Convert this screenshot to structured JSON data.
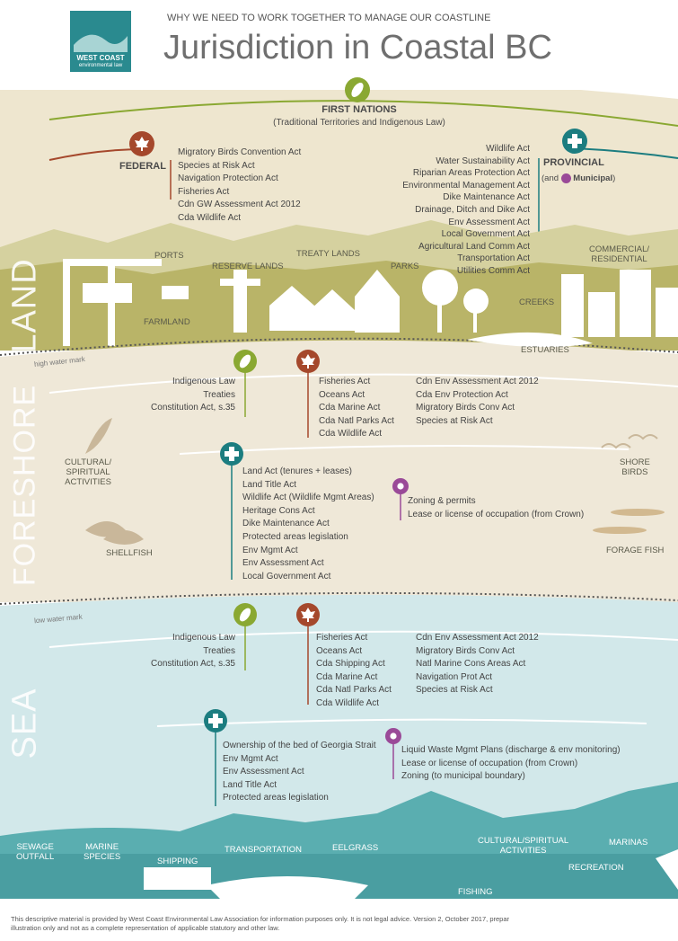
{
  "header": {
    "logo": [
      "WEST COAST",
      "environmental law"
    ],
    "kicker": "WHY WE NEED TO WORK TOGETHER TO MANAGE OUR COASTLINE",
    "title": "Jurisdiction in Coastal BC"
  },
  "top": {
    "first_nations": {
      "title": "FIRST NATIONS",
      "subtitle": "(Traditional Territories and Indigenous Law)"
    },
    "federal": {
      "title": "FEDERAL",
      "acts": [
        "Migratory Birds Convention Act",
        "Species at Risk Act",
        "Navigation Protection Act",
        "Fisheries Act",
        "Cdn GW Assessment Act 2012",
        "Cda Wildlife Act"
      ]
    },
    "provincial": {
      "title": "PROVINCIAL",
      "note_open": "(and",
      "municipal": "Municipal",
      "note_close": ")",
      "acts": [
        "Wildlife Act",
        "Water Sustainability Act",
        "Riparian Areas Protection Act",
        "Environmental Management Act",
        "Dike Maintenance Act",
        "Drainage, Ditch and Dike Act",
        "Env Assessment Act",
        "Local Government Act",
        "Agricultural Land Comm Act",
        "Transportation Act",
        "Utilities Comm Act"
      ]
    }
  },
  "land": {
    "zone": "LAND",
    "places": {
      "ports": "PORTS",
      "reserve": "RESERVE LANDS",
      "treaty": "TREATY LANDS",
      "parks": "PARKS",
      "commercial": [
        "COMMERCIAL/",
        "RESIDENTIAL"
      ],
      "creeks": "CREEKS",
      "farmland": "FARMLAND",
      "estuaries": "ESTUARIES"
    },
    "mark": "high water mark"
  },
  "foreshore": {
    "zone": "FORESHORE",
    "first_nations": [
      "Indigenous Law",
      "Treaties",
      "Constitution Act, s.35"
    ],
    "federal": [
      "Fisheries Act",
      "Oceans Act",
      "Cda Marine Act",
      "Cda Natl Parks Act",
      "Cda Wildlife Act"
    ],
    "federal_2": [
      "Cdn Env Assessment Act 2012",
      "Cda Env Protection Act",
      "Migratory Birds Conv Act",
      "Species at Risk Act"
    ],
    "provincial": [
      "Land Act (tenures + leases)",
      "Land Title Act",
      "Wildlife Act (Wildlife Mgmt Areas)",
      "Heritage Cons Act",
      "Dike Maintenance Act",
      "Protected areas legislation",
      "Env Mgmt Act",
      "Env Assessment Act",
      "Local Government Act"
    ],
    "municipal": [
      "Zoning & permits",
      "Lease or license of occupation (from Crown)"
    ],
    "labels": {
      "cultural": [
        "CULTURAL/",
        "SPIRITUAL",
        "ACTIVITIES"
      ],
      "shellfish": "SHELLFISH",
      "birds": [
        "SHORE",
        "BIRDS"
      ],
      "fish": "FORAGE FISH"
    },
    "mark": "low water mark"
  },
  "sea": {
    "zone": "SEA",
    "first_nations": [
      "Indigenous Law",
      "Treaties",
      "Constitution Act, s.35"
    ],
    "federal": [
      "Fisheries Act",
      "Oceans Act",
      "Cda Shipping Act",
      "Cda Marine Act",
      "Cda Natl Parks Act",
      "Cda Wildlife Act"
    ],
    "federal_2": [
      "Cdn Env Assessment Act 2012",
      "Migratory Birds Conv Act",
      "Natl Marine Cons Areas Act",
      "Navigation Prot Act",
      "Species at Risk Act"
    ],
    "provincial": [
      "Ownership of the bed of Georgia Strait",
      "Env Mgmt Act",
      "Env Assessment Act",
      "Land Title Act",
      "Protected areas legislation"
    ],
    "municipal": [
      "Liquid Waste Mgmt Plans (discharge & env monitoring)",
      "Lease or license of occupation (from Crown)",
      "Zoning (to municipal boundary)"
    ],
    "labels": {
      "sewage": [
        "SEWAGE",
        "OUTFALL"
      ],
      "marine": [
        "MARINE",
        "SPECIES"
      ],
      "shipping": "SHIPPING",
      "transportation": "TRANSPORTATION",
      "eelgrass": "EELGRASS",
      "cultural": [
        "CULTURAL/SPIRITUAL",
        "ACTIVITIES"
      ],
      "marinas": "MARINAS",
      "recreation": "RECREATION",
      "fishing": "FISHING"
    }
  },
  "footer": [
    "This descriptive material is provided by West Coast Environmental Law Association for information purposes only. It is not legal advice. Version 2, October 2017, prepar",
    "illustration only and not as a complete representation of applicable statutory and other law."
  ]
}
